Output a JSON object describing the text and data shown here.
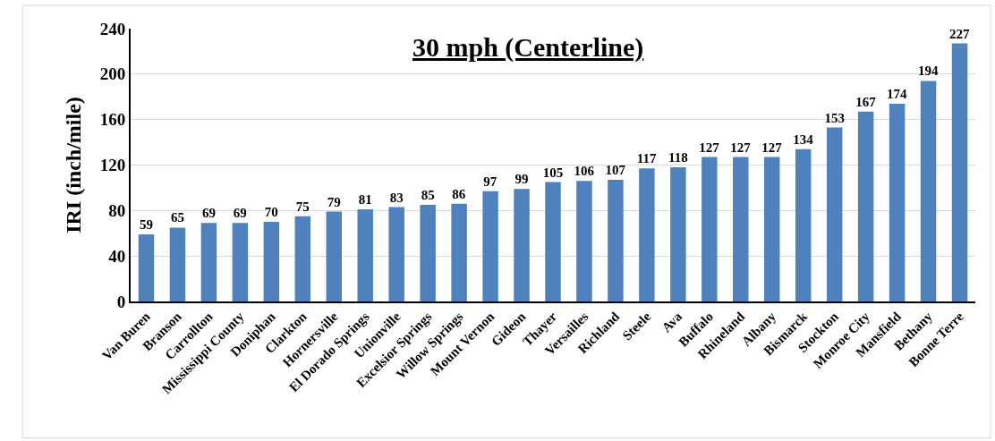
{
  "chart_data": {
    "type": "bar",
    "title": "30 mph (Centerline)",
    "ylabel": "IRI (inch/mile)",
    "categories": [
      "Van Buren",
      "Branson",
      "Carrollton",
      "Mississippi County",
      "Doniphan",
      "Clarkton",
      "Hornersville",
      "El Dorado Springs",
      "Unionville",
      "Excelsior Springs",
      "Willow Springs",
      "Mount Vernon",
      "Gideon",
      "Thayer",
      "Versailles",
      "Richland",
      "Steele",
      "Ava",
      "Buffalo",
      "Rhineland",
      "Albany",
      "Bismarck",
      "Stockton",
      "Monroe City",
      "Mansfield",
      "Bethany",
      "Bonne Terre"
    ],
    "values": [
      59,
      65,
      69,
      69,
      70,
      75,
      79,
      81,
      83,
      85,
      86,
      97,
      99,
      105,
      106,
      107,
      117,
      118,
      127,
      127,
      127,
      134,
      153,
      167,
      174,
      194,
      227
    ],
    "color": "#4f81bd",
    "ylim": [
      0,
      240
    ],
    "yticks": [
      0,
      40,
      80,
      120,
      160,
      200,
      240
    ],
    "grid": "y",
    "data_labels": true
  }
}
